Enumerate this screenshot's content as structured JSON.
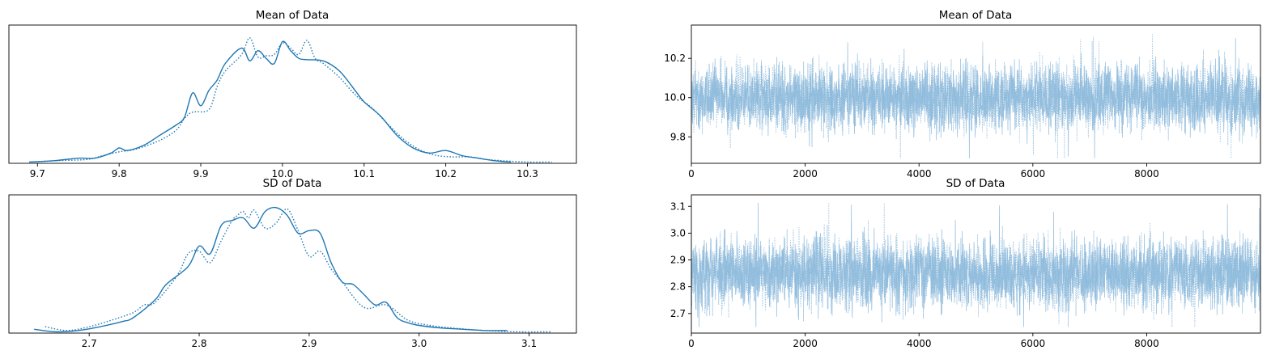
{
  "colors": {
    "line": "#1f77b4",
    "frame": "#000000"
  },
  "chart_data": [
    {
      "type": "line",
      "title": "Mean of Data",
      "xlabel": "",
      "ylabel": "",
      "xlim": [
        9.665,
        10.36
      ],
      "ylim": [
        0,
        1.08
      ],
      "xticks": [
        9.7,
        9.8,
        9.9,
        10.0,
        10.1,
        10.2,
        10.3
      ],
      "xtick_labels": [
        "9.7",
        "9.8",
        "9.9",
        "10.0",
        "10.1",
        "10.2",
        "10.3"
      ],
      "yticks_visible": false,
      "series": [
        {
          "style": "solid",
          "x": [
            9.69,
            9.72,
            9.75,
            9.77,
            9.79,
            9.8,
            9.81,
            9.83,
            9.85,
            9.87,
            9.88,
            9.89,
            9.9,
            9.91,
            9.92,
            9.93,
            9.95,
            9.96,
            9.97,
            9.98,
            9.99,
            10.0,
            10.01,
            10.02,
            10.03,
            10.05,
            10.07,
            10.09,
            10.1,
            10.12,
            10.14,
            10.16,
            10.18,
            10.2,
            10.22,
            10.24,
            10.26,
            10.28
          ],
          "y": [
            0.01,
            0.02,
            0.04,
            0.04,
            0.08,
            0.12,
            0.1,
            0.14,
            0.22,
            0.3,
            0.36,
            0.55,
            0.45,
            0.57,
            0.65,
            0.78,
            0.9,
            0.8,
            0.88,
            0.82,
            0.78,
            0.95,
            0.88,
            0.82,
            0.81,
            0.8,
            0.72,
            0.56,
            0.48,
            0.37,
            0.22,
            0.12,
            0.08,
            0.1,
            0.06,
            0.04,
            0.02,
            0.01
          ]
        },
        {
          "style": "dotted",
          "x": [
            9.69,
            9.72,
            9.76,
            9.78,
            9.8,
            9.82,
            9.85,
            9.87,
            9.88,
            9.89,
            9.91,
            9.92,
            9.93,
            9.95,
            9.96,
            9.97,
            9.98,
            9.99,
            10.0,
            10.01,
            10.02,
            10.03,
            10.04,
            10.05,
            10.07,
            10.09,
            10.11,
            10.13,
            10.15,
            10.17,
            10.19,
            10.21,
            10.23,
            10.25,
            10.27,
            10.3,
            10.33
          ],
          "y": [
            0.01,
            0.02,
            0.03,
            0.06,
            0.09,
            0.11,
            0.18,
            0.26,
            0.35,
            0.4,
            0.42,
            0.6,
            0.72,
            0.85,
            0.98,
            0.83,
            0.84,
            0.85,
            0.94,
            0.9,
            0.85,
            0.96,
            0.82,
            0.78,
            0.67,
            0.53,
            0.43,
            0.3,
            0.18,
            0.1,
            0.06,
            0.05,
            0.05,
            0.03,
            0.02,
            0.01,
            0.01
          ]
        }
      ]
    },
    {
      "type": "line",
      "title": "Mean of Data",
      "xlabel": "",
      "ylabel": "",
      "xlim": [
        0,
        9999
      ],
      "ylim": [
        9.665,
        10.37
      ],
      "xticks": [
        0,
        2000,
        4000,
        6000,
        8000
      ],
      "xtick_labels": [
        "0",
        "2000",
        "4000",
        "6000",
        "8000"
      ],
      "yticks": [
        9.8,
        10.0,
        10.2
      ],
      "ytick_labels": [
        "9.8",
        "10.0",
        "10.2"
      ],
      "trace": {
        "n_draws": 10000,
        "chains": 2,
        "center": 10.0,
        "spread": 0.085,
        "min": 9.69,
        "max": 10.33
      }
    },
    {
      "type": "line",
      "title": "SD of Data",
      "xlabel": "",
      "ylabel": "",
      "xlim": [
        2.627,
        3.143
      ],
      "ylim": [
        0,
        1.08
      ],
      "xticks": [
        2.7,
        2.8,
        2.9,
        3.0,
        3.1
      ],
      "xtick_labels": [
        "2.7",
        "2.8",
        "2.9",
        "3.0",
        "3.1"
      ],
      "yticks_visible": false,
      "series": [
        {
          "style": "solid",
          "x": [
            2.65,
            2.67,
            2.69,
            2.71,
            2.73,
            2.74,
            2.76,
            2.77,
            2.79,
            2.8,
            2.81,
            2.82,
            2.83,
            2.84,
            2.85,
            2.86,
            2.87,
            2.88,
            2.89,
            2.9,
            2.91,
            2.92,
            2.93,
            2.94,
            2.95,
            2.96,
            2.97,
            2.98,
            2.99,
            3.0,
            3.02,
            3.04,
            3.06,
            3.08
          ],
          "y": [
            0.03,
            0.01,
            0.02,
            0.05,
            0.09,
            0.12,
            0.26,
            0.38,
            0.52,
            0.68,
            0.62,
            0.84,
            0.88,
            0.9,
            0.82,
            0.95,
            0.98,
            0.92,
            0.78,
            0.8,
            0.78,
            0.55,
            0.4,
            0.38,
            0.3,
            0.22,
            0.24,
            0.12,
            0.08,
            0.06,
            0.04,
            0.03,
            0.02,
            0.02
          ]
        },
        {
          "style": "dotted",
          "x": [
            2.66,
            2.68,
            2.7,
            2.72,
            2.74,
            2.75,
            2.76,
            2.78,
            2.79,
            2.8,
            2.81,
            2.82,
            2.83,
            2.835,
            2.84,
            2.845,
            2.85,
            2.86,
            2.87,
            2.88,
            2.89,
            2.9,
            2.91,
            2.92,
            2.93,
            2.95,
            2.97,
            2.99,
            3.01,
            3.03,
            3.06,
            3.09,
            3.12
          ],
          "y": [
            0.05,
            0.02,
            0.05,
            0.1,
            0.16,
            0.22,
            0.24,
            0.45,
            0.62,
            0.64,
            0.55,
            0.72,
            0.88,
            0.92,
            0.95,
            0.9,
            0.96,
            0.82,
            0.86,
            0.97,
            0.8,
            0.6,
            0.64,
            0.5,
            0.4,
            0.2,
            0.22,
            0.1,
            0.06,
            0.04,
            0.02,
            0.01,
            0.01
          ]
        }
      ]
    },
    {
      "type": "line",
      "title": "SD of Data",
      "xlabel": "",
      "ylabel": "",
      "xlim": [
        0,
        9999
      ],
      "ylim": [
        2.627,
        3.143
      ],
      "xticks": [
        0,
        2000,
        4000,
        6000,
        8000
      ],
      "xtick_labels": [
        "0",
        "2000",
        "4000",
        "6000",
        "8000"
      ],
      "yticks": [
        2.7,
        2.8,
        2.9,
        3.0,
        3.1
      ],
      "ytick_labels": [
        "2.7",
        "2.8",
        "2.9",
        "3.0",
        "3.1"
      ],
      "trace": {
        "n_draws": 10000,
        "chains": 2,
        "center": 2.85,
        "spread": 0.065,
        "min": 2.65,
        "max": 3.12
      }
    }
  ]
}
